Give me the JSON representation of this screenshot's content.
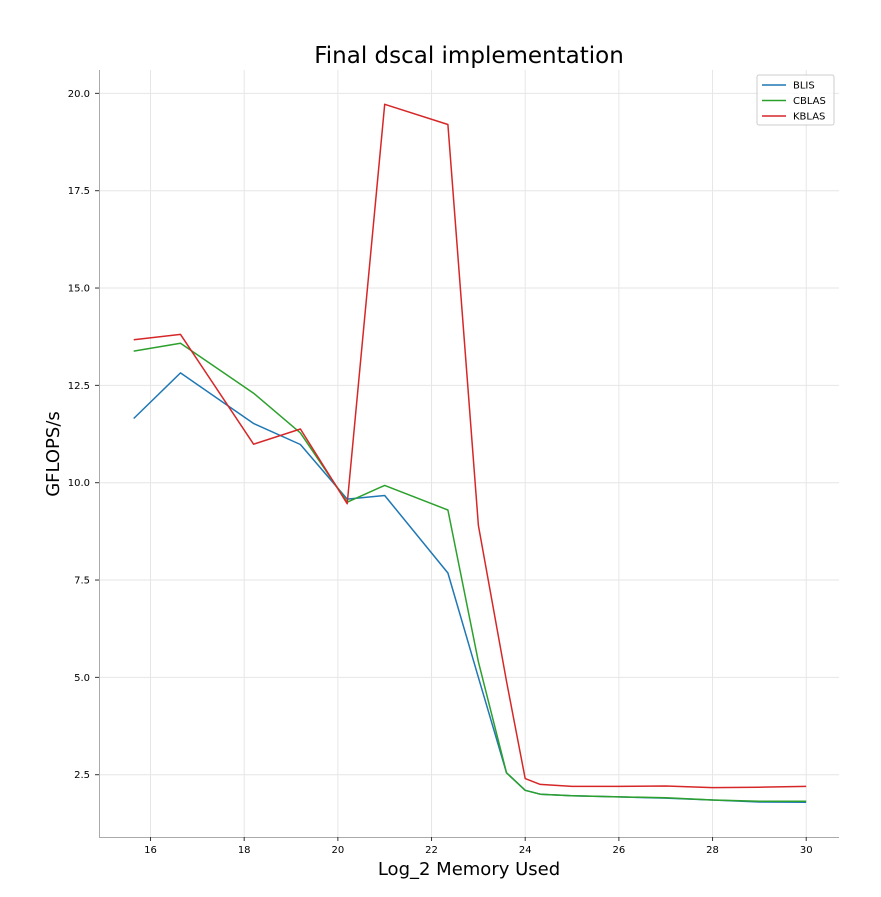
{
  "chart_data": {
    "type": "line",
    "title": "Final dscal implementation",
    "xlabel": "Log_2 Memory Used",
    "ylabel": "GFLOPS/s",
    "xlim": [
      14.9,
      30.7
    ],
    "ylim": [
      0.9,
      20.6
    ],
    "xticks": [
      16,
      18,
      20,
      22,
      24,
      26,
      28,
      30
    ],
    "yticks": [
      2.5,
      5.0,
      7.5,
      10.0,
      12.5,
      15.0,
      17.5,
      20.0
    ],
    "xtick_labels": [
      "16",
      "18",
      "20",
      "22",
      "24",
      "26",
      "28",
      "30"
    ],
    "ytick_labels": [
      "2.5",
      "5.0",
      "7.5",
      "10.0",
      "12.5",
      "15.0",
      "17.5",
      "20.0"
    ],
    "grid": true,
    "legend_position": "top-right",
    "series": [
      {
        "name": "BLIS",
        "color": "#1f77b4",
        "x": [
          15.64,
          16.64,
          18.2,
          19.2,
          20.2,
          21.0,
          22.35,
          23.0,
          23.6,
          24.0,
          24.32,
          25.0,
          26.0,
          27.0,
          28.0,
          29.0,
          30.0
        ],
        "y": [
          11.65,
          12.82,
          11.52,
          10.98,
          9.58,
          9.67,
          7.68,
          5.0,
          2.55,
          2.1,
          2.0,
          1.96,
          1.93,
          1.9,
          1.85,
          1.8,
          1.79
        ]
      },
      {
        "name": "CBLAS",
        "color": "#2ca02c",
        "x": [
          15.64,
          16.64,
          18.2,
          19.2,
          20.2,
          21.0,
          22.35,
          23.0,
          23.6,
          24.0,
          24.32,
          25.0,
          26.0,
          27.0,
          28.0,
          29.0,
          30.0
        ],
        "y": [
          13.38,
          13.58,
          12.3,
          11.28,
          9.5,
          9.93,
          9.3,
          5.4,
          2.55,
          2.1,
          2.0,
          1.96,
          1.93,
          1.91,
          1.85,
          1.82,
          1.82
        ]
      },
      {
        "name": "KBLAS",
        "color": "#d62728",
        "x": [
          15.64,
          16.64,
          18.2,
          19.2,
          20.2,
          21.0,
          22.35,
          23.0,
          23.6,
          24.0,
          24.32,
          25.0,
          26.0,
          27.0,
          28.0,
          29.0,
          30.0
        ],
        "y": [
          13.67,
          13.81,
          10.99,
          11.38,
          9.46,
          19.72,
          19.2,
          8.9,
          4.9,
          2.4,
          2.25,
          2.2,
          2.2,
          2.21,
          2.17,
          2.18,
          2.2
        ]
      }
    ]
  }
}
